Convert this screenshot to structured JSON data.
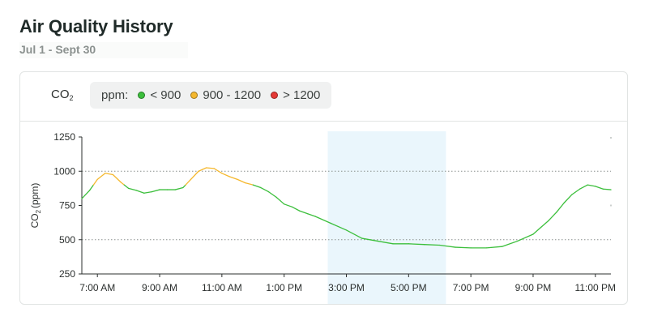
{
  "header": {
    "title": "Air Quality History",
    "subtitle": "Jul 1 - Sept 30"
  },
  "card": {
    "metric_label": "CO",
    "metric_sub": "2"
  },
  "legend": {
    "prefix": "ppm:",
    "items": [
      {
        "label": "< 900",
        "color": "#3cbf3c"
      },
      {
        "label": "900 - 1200",
        "color": "#f5b82e"
      },
      {
        "label": "> 1200",
        "color": "#e53935"
      }
    ]
  },
  "chart_data": {
    "type": "line",
    "ylabel_main": "CO",
    "ylabel_sub": "2",
    "ylabel_unit": "(ppm)",
    "ylim": [
      250,
      1250
    ],
    "yticks": [
      {
        "value": 250,
        "label": "250"
      },
      {
        "value": 500,
        "label": "500"
      },
      {
        "value": 750,
        "label": "750"
      },
      {
        "value": 1000,
        "label": "1000"
      },
      {
        "value": 1250,
        "label": "1250"
      }
    ],
    "xlim": [
      6.5,
      23.5
    ],
    "xticks": [
      {
        "value": 7,
        "label": "7:00 AM"
      },
      {
        "value": 9,
        "label": "9:00 AM"
      },
      {
        "value": 11,
        "label": "11:00 AM"
      },
      {
        "value": 13,
        "label": "1:00 PM"
      },
      {
        "value": 15,
        "label": "3:00 PM"
      },
      {
        "value": 17,
        "label": "5:00 PM"
      },
      {
        "value": 19,
        "label": "7:00 PM"
      },
      {
        "value": 21,
        "label": "9:00 PM"
      },
      {
        "value": 23,
        "label": "11:00 PM"
      }
    ],
    "reference_lines": [
      500,
      1000
    ],
    "highlight_range": [
      14.4,
      18.2
    ],
    "thresholds": {
      "low": 900,
      "high": 1200
    },
    "colors": {
      "low": "#3cbf3c",
      "mid": "#f5b82e",
      "high": "#e53935"
    },
    "series": [
      {
        "x": [
          6.5,
          6.75,
          7.0,
          7.25,
          7.5,
          7.75,
          8.0,
          8.25,
          8.5,
          8.75,
          9.0,
          9.25,
          9.5,
          9.75,
          10.0,
          10.25,
          10.5,
          10.75,
          11.0,
          11.25,
          11.5,
          11.75,
          12.0,
          12.25,
          12.5,
          12.75,
          13.0,
          13.25,
          13.5,
          13.75,
          14.0,
          14.5,
          15.0,
          15.5,
          16.0,
          16.5,
          17.0,
          17.5,
          18.0,
          18.5,
          19.0,
          19.5,
          20.0,
          20.5,
          21.0,
          21.25,
          21.5,
          21.75,
          22.0,
          22.25,
          22.5,
          22.75,
          23.0,
          23.25,
          23.5
        ],
        "y": [
          800,
          860,
          940,
          985,
          975,
          920,
          875,
          860,
          840,
          850,
          865,
          865,
          865,
          880,
          940,
          1000,
          1025,
          1020,
          985,
          960,
          940,
          915,
          900,
          880,
          850,
          810,
          760,
          740,
          710,
          690,
          670,
          620,
          570,
          510,
          490,
          470,
          470,
          465,
          460,
          445,
          440,
          440,
          450,
          490,
          540,
          590,
          640,
          700,
          770,
          830,
          870,
          900,
          890,
          870,
          865
        ]
      }
    ]
  }
}
